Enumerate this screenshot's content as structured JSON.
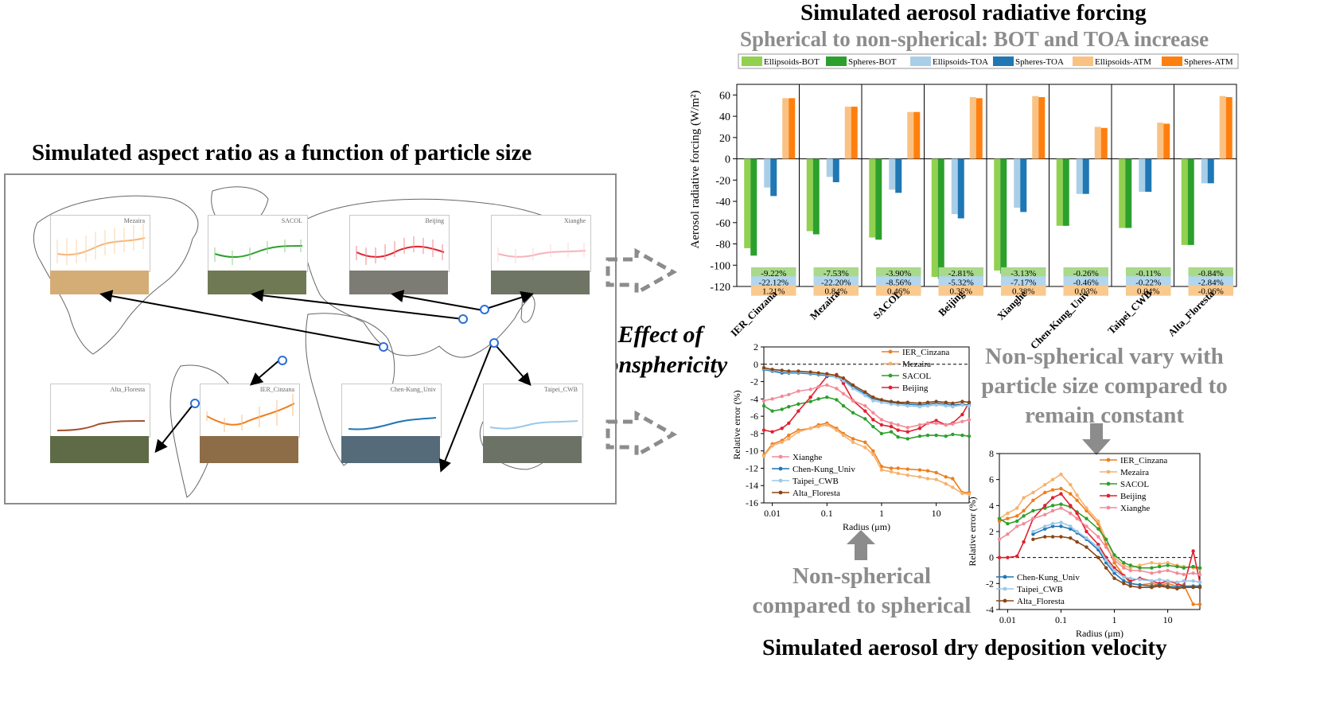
{
  "titles": {
    "map_title": "Simulated aspect ratio as a function of particle size",
    "forcing_title": "Simulated aerosol radiative forcing",
    "forcing_subtitle": "Spherical to non-spherical: BOT and TOA increase",
    "deposition_title": "Simulated aerosol dry deposition velocity",
    "effect_line1": "Effect of",
    "effect_line2": "nonsphericity",
    "nonspherical_compared_line1": "Non-spherical",
    "nonspherical_compared_line2": "compared to spherical",
    "vary_line1": "Non-spherical vary with",
    "vary_line2": "particle size compared to",
    "vary_line3": "remain constant"
  },
  "map_panels": [
    "Mezaira",
    "SACOL",
    "Beijing",
    "Xianghe",
    "Alta_Floresta",
    "IER_Cinzana",
    "Chen-Kung_Univ",
    "Taipei_CWB"
  ],
  "chart_data": [
    {
      "type": "bar",
      "title": "Simulated aerosol radiative forcing",
      "ylabel": "Aerosol radiative forcing (W/m²)",
      "ylim": [
        -120,
        70
      ],
      "yticks": [
        "60",
        "40",
        "20",
        "0",
        "-20",
        "-40",
        "-60",
        "-80",
        "-100",
        "-120"
      ],
      "categories": [
        "IER_Cinzana",
        "Mezaira",
        "SACOL",
        "Beijing",
        "Xianghe",
        "Chen-Kung_Univ",
        "Taipei_CWB",
        "Alta_Floresta"
      ],
      "series": [
        {
          "name": "Ellipsoids-BOT",
          "color": "#92d050",
          "values": [
            -84,
            -68,
            -74,
            -111,
            -105,
            -63,
            -65,
            -81
          ]
        },
        {
          "name": "Spheres-BOT",
          "color": "#2ca02c",
          "values": [
            -91,
            -71,
            -76,
            -113,
            -108,
            -63,
            -65,
            -81
          ]
        },
        {
          "name": "Ellipsoids-TOA",
          "color": "#a9cfe8",
          "values": [
            -27,
            -17,
            -29,
            -52,
            -46,
            -33,
            -31,
            -23
          ]
        },
        {
          "name": "Spheres-TOA",
          "color": "#1f77b4",
          "values": [
            -35,
            -22,
            -32,
            -56,
            -50,
            -33,
            -31,
            -23
          ]
        },
        {
          "name": "Ellipsoids-ATM",
          "color": "#f9c283",
          "values": [
            57,
            49,
            44,
            58,
            59,
            30,
            34,
            59
          ]
        },
        {
          "name": "Spheres-ATM",
          "color": "#ff7f0e",
          "values": [
            57,
            49,
            44,
            57,
            58,
            29,
            33,
            58
          ]
        }
      ],
      "annotations": {
        "bot": [
          "-9.22%",
          "-7.53%",
          "-3.90%",
          "-2.81%",
          "-3.13%",
          "-0.26%",
          "-0.11%",
          "-0.84%"
        ],
        "toa": [
          "-22.12%",
          "-22.20%",
          "-8.56%",
          "-5.32%",
          "-7.17%",
          "-0.46%",
          "-0.22%",
          "-2.84%"
        ],
        "atm": [
          "1.21%",
          "0.84%",
          "0.46%",
          "0.35%",
          "0.38%",
          "0.03%",
          "0.04%",
          "-0.06%"
        ]
      },
      "annotation_colors": {
        "bot": "#a9d98a",
        "toa": "#b3d6ee",
        "atm": "#f9c98e"
      }
    },
    {
      "type": "line",
      "xlabel": "Radius (μm)",
      "ylabel": "Relative error (%)",
      "xscale": "log",
      "xlim": [
        0.007,
        40
      ],
      "ylim": [
        -16,
        2
      ],
      "xticks": [
        "0.01",
        "0.1",
        "1",
        "10"
      ],
      "yticks": [
        "2",
        "0",
        "-2",
        "-4",
        "-6",
        "-8",
        "-10",
        "-12",
        "-14",
        "-16"
      ],
      "x": [
        0.007,
        0.01,
        0.015,
        0.02,
        0.03,
        0.05,
        0.07,
        0.1,
        0.15,
        0.2,
        0.3,
        0.5,
        0.7,
        1,
        1.5,
        2,
        3,
        5,
        7,
        10,
        15,
        20,
        30,
        40
      ],
      "series": [
        {
          "name": "IER_Cinzana",
          "color": "#f07d1a",
          "values": [
            -10.5,
            -9.2,
            -8.8,
            -8.2,
            -7.6,
            -7.4,
            -7.0,
            -6.8,
            -7.4,
            -8.0,
            -8.6,
            -9.0,
            -10.0,
            -11.8,
            -12.0,
            -12.0,
            -12.1,
            -12.2,
            -12.3,
            -12.5,
            -13.0,
            -13.2,
            -14.8,
            -14.8
          ]
        },
        {
          "name": "Mezaira",
          "color": "#f6b26b",
          "values": [
            -10.6,
            -9.4,
            -9.0,
            -8.6,
            -7.8,
            -7.4,
            -7.2,
            -7.0,
            -7.6,
            -8.2,
            -9.0,
            -9.6,
            -10.4,
            -12.2,
            -12.4,
            -12.6,
            -12.8,
            -13.0,
            -13.2,
            -13.3,
            -13.8,
            -14.2,
            -14.9,
            -15.0
          ]
        },
        {
          "name": "SACOL",
          "color": "#2ca02c",
          "values": [
            -4.8,
            -5.4,
            -5.2,
            -4.9,
            -4.6,
            -4.3,
            -4.0,
            -3.8,
            -4.1,
            -4.8,
            -5.6,
            -6.3,
            -7.2,
            -8.0,
            -7.8,
            -8.4,
            -8.6,
            -8.3,
            -8.2,
            -8.2,
            -8.3,
            -8.1,
            -8.2,
            -8.3
          ]
        },
        {
          "name": "Beijing",
          "color": "#e0202e",
          "values": [
            -7.6,
            -7.8,
            -7.4,
            -6.8,
            -5.4,
            -3.8,
            -2.6,
            -1.4,
            -1.2,
            -2.2,
            -4.2,
            -5.4,
            -6.4,
            -7.0,
            -7.2,
            -7.6,
            -7.8,
            -7.4,
            -6.8,
            -6.5,
            -7.0,
            -6.8,
            -5.8,
            -4.4
          ]
        },
        {
          "name": "Xianghe",
          "color": "#f28b98",
          "values": [
            -4.2,
            -4.0,
            -3.7,
            -3.5,
            -3.1,
            -2.9,
            -2.6,
            -2.4,
            -2.8,
            -3.4,
            -4.2,
            -4.8,
            -5.6,
            -6.4,
            -6.8,
            -7.0,
            -7.3,
            -7.0,
            -6.8,
            -6.8,
            -7.0,
            -6.9,
            -6.6,
            -6.4
          ]
        },
        {
          "name": "Chen-Kung_Univ",
          "color": "#1f77b4",
          "values": [
            -0.6,
            -0.8,
            -1.0,
            -1.0,
            -1.0,
            -1.1,
            -1.2,
            -1.3,
            -1.5,
            -1.8,
            -2.6,
            -3.4,
            -4.0,
            -4.2,
            -4.4,
            -4.5,
            -4.6,
            -4.7,
            -4.6,
            -4.5,
            -4.6,
            -4.7,
            -4.6,
            -4.7
          ]
        },
        {
          "name": "Taipei_CWB",
          "color": "#9cc8ea",
          "values": [
            -0.5,
            -0.7,
            -0.8,
            -0.9,
            -0.9,
            -1.0,
            -1.1,
            -1.2,
            -1.5,
            -1.9,
            -2.8,
            -3.6,
            -4.2,
            -4.4,
            -4.6,
            -4.7,
            -4.8,
            -4.9,
            -4.8,
            -4.7,
            -4.8,
            -4.9,
            -4.7,
            -4.8
          ]
        },
        {
          "name": "Alta_Floresta",
          "color": "#8b4513",
          "values": [
            -0.4,
            -0.6,
            -0.7,
            -0.8,
            -0.8,
            -0.9,
            -1.0,
            -1.1,
            -1.3,
            -1.6,
            -2.4,
            -3.2,
            -3.8,
            -4.1,
            -4.3,
            -4.4,
            -4.4,
            -4.5,
            -4.4,
            -4.3,
            -4.4,
            -4.5,
            -4.3,
            -4.4
          ]
        }
      ],
      "legend_top": [
        "IER_Cinzana",
        "Mezaira",
        "SACOL",
        "Beijing"
      ],
      "legend_bottom": [
        "Xianghe",
        "Chen-Kung_Univ",
        "Taipei_CWB",
        "Alta_Floresta"
      ]
    },
    {
      "type": "line",
      "xlabel": "Radius (μm)",
      "ylabel": "Relative error (%)",
      "xscale": "log",
      "xlim": [
        0.007,
        40
      ],
      "ylim": [
        -4,
        8
      ],
      "xticks": [
        "0.01",
        "0.1",
        "1",
        "10"
      ],
      "yticks": [
        "8",
        "6",
        "4",
        "2",
        "0",
        "-2",
        "-4"
      ],
      "x": [
        0.007,
        0.01,
        0.015,
        0.02,
        0.03,
        0.05,
        0.07,
        0.1,
        0.15,
        0.2,
        0.3,
        0.5,
        0.7,
        1,
        1.5,
        2,
        3,
        5,
        7,
        10,
        15,
        20,
        30,
        40
      ],
      "series": [
        {
          "name": "IER_Cinzana",
          "color": "#f07d1a",
          "values": [
            2.8,
            3.0,
            3.2,
            3.6,
            4.4,
            5.0,
            5.2,
            5.3,
            4.9,
            4.4,
            3.6,
            2.6,
            1.0,
            -0.4,
            -1.4,
            -2.0,
            -2.1,
            -2.0,
            -2.1,
            -2.0,
            -2.2,
            -2.1,
            -3.6,
            -3.6
          ]
        },
        {
          "name": "Mezaira",
          "color": "#f6b26b",
          "values": [
            3.0,
            3.4,
            3.8,
            4.6,
            5.0,
            5.6,
            6.0,
            6.4,
            5.6,
            4.8,
            3.8,
            2.8,
            1.4,
            0.0,
            -0.6,
            -0.8,
            -0.6,
            -0.4,
            -0.5,
            -0.4,
            -0.6,
            -0.7,
            -0.8,
            -0.9
          ]
        },
        {
          "name": "SACOL",
          "color": "#2ca02c",
          "values": [
            3.0,
            2.6,
            2.8,
            3.2,
            3.6,
            3.8,
            4.0,
            4.1,
            3.9,
            3.5,
            3.0,
            2.2,
            1.4,
            0.2,
            -0.4,
            -0.6,
            -0.8,
            -0.8,
            -0.7,
            -0.6,
            -0.7,
            -0.8,
            -0.7,
            -0.8
          ]
        },
        {
          "name": "Beijing",
          "color": "#e0202e",
          "values": [
            0.0,
            0.0,
            0.1,
            1.2,
            3.0,
            4.0,
            4.6,
            4.9,
            4.0,
            3.4,
            2.0,
            1.0,
            0.0,
            -0.8,
            -1.4,
            -1.8,
            -1.6,
            -1.8,
            -2.0,
            -1.8,
            -2.0,
            -2.2,
            0.5,
            -1.9
          ]
        },
        {
          "name": "Xianghe",
          "color": "#f28b98",
          "values": [
            1.4,
            1.8,
            2.4,
            2.6,
            3.0,
            3.3,
            3.6,
            3.8,
            3.4,
            3.0,
            2.4,
            1.6,
            0.8,
            -0.2,
            -0.8,
            -1.0,
            -1.0,
            -1.2,
            -1.1,
            -1.0,
            -1.2,
            -1.3,
            -1.2,
            -1.3
          ]
        },
        {
          "name": "Chen-Kung_Univ",
          "color": "#1f77b4",
          "values": [
            null,
            null,
            null,
            null,
            1.8,
            2.2,
            2.4,
            2.4,
            2.2,
            1.9,
            1.4,
            0.6,
            -0.4,
            -1.2,
            -1.8,
            -2.0,
            -2.1,
            -2.2,
            -2.1,
            -2.2,
            -2.3,
            -2.2,
            -2.2,
            -2.2
          ]
        },
        {
          "name": "Taipei_CWB",
          "color": "#9cc8ea",
          "values": [
            null,
            null,
            null,
            null,
            2.0,
            2.4,
            2.6,
            2.7,
            2.4,
            2.0,
            1.5,
            0.8,
            -0.2,
            -1.0,
            -1.5,
            -1.6,
            -1.7,
            -1.8,
            -1.7,
            -1.8,
            -1.9,
            -1.8,
            -1.8,
            -1.9
          ]
        },
        {
          "name": "Alta_Floresta",
          "color": "#8b4513",
          "values": [
            null,
            null,
            null,
            null,
            1.4,
            1.6,
            1.6,
            1.6,
            1.5,
            1.2,
            0.8,
            0.0,
            -0.8,
            -1.6,
            -2.0,
            -2.2,
            -2.3,
            -2.3,
            -2.2,
            -2.3,
            -2.4,
            -2.3,
            -2.3,
            -2.3
          ]
        }
      ],
      "legend_top": [
        "IER_Cinzana",
        "Mezaira",
        "SACOL",
        "Beijing",
        "Xianghe"
      ],
      "legend_bottom": [
        "Chen-Kung_Univ",
        "Taipei_CWB",
        "Alta_Floresta"
      ]
    }
  ]
}
